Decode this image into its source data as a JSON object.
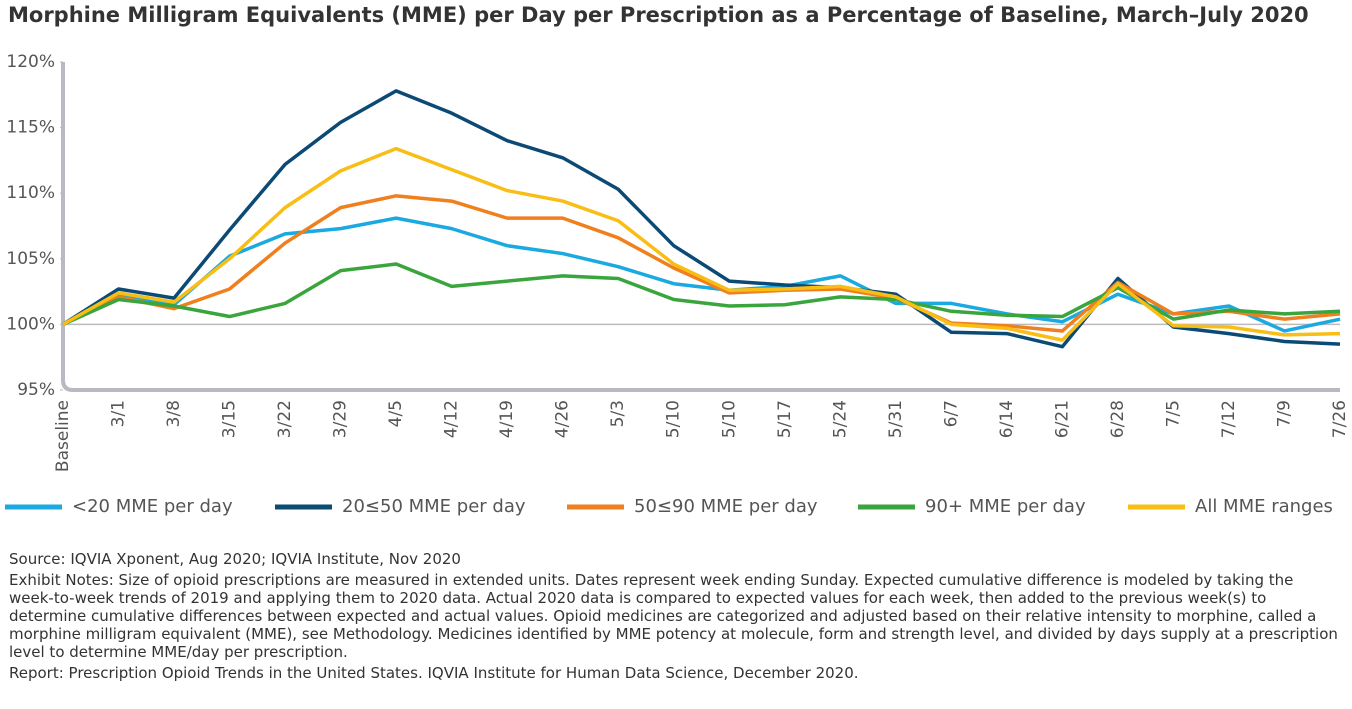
{
  "chart_data": {
    "type": "line",
    "title": "Morphine Milligram Equivalents (MME) per Day per Prescription as a Percentage of Baseline, March–July 2020",
    "categories": [
      "Baseline",
      "3/1",
      "3/8",
      "3/15",
      "3/22",
      "3/29",
      "4/5",
      "4/12",
      "4/19",
      "4/26",
      "5/3",
      "5/10",
      "5/10",
      "5/17",
      "5/24",
      "5/31",
      "6/7",
      "6/14",
      "6/21",
      "6/28",
      "7/5",
      "7/12",
      "7/9",
      "7/26"
    ],
    "series": [
      {
        "name": "<20 MME per day",
        "color": "#1ba9e1",
        "values": [
          100,
          102.2,
          101.5,
          105.2,
          106.9,
          107.3,
          108.1,
          107.3,
          106.0,
          105.4,
          104.4,
          103.1,
          102.6,
          102.9,
          103.7,
          101.6,
          101.6,
          100.8,
          100.2,
          102.3,
          100.8,
          101.4,
          99.5,
          100.4
        ]
      },
      {
        "name": "20≤50 MME per day",
        "color": "#0b4a75",
        "values": [
          100,
          102.7,
          102.0,
          107.2,
          112.2,
          115.4,
          117.8,
          116.1,
          114.0,
          112.7,
          110.3,
          106.0,
          103.3,
          103.0,
          102.8,
          102.3,
          99.4,
          99.3,
          98.3,
          103.5,
          99.8,
          99.3,
          98.7,
          98.5
        ]
      },
      {
        "name": "50≤90 MME per day",
        "color": "#f07f1e",
        "values": [
          100,
          102.1,
          101.2,
          102.7,
          106.2,
          108.9,
          109.8,
          109.4,
          108.1,
          108.1,
          106.6,
          104.3,
          102.4,
          102.6,
          102.7,
          102.0,
          100.1,
          99.9,
          99.5,
          103.2,
          100.8,
          101.0,
          100.4,
          100.8
        ]
      },
      {
        "name": "90+ MME per day",
        "color": "#3aa53d",
        "values": [
          100,
          101.9,
          101.4,
          100.6,
          101.6,
          104.1,
          104.6,
          102.9,
          103.3,
          103.7,
          103.5,
          101.9,
          101.4,
          101.5,
          102.1,
          101.9,
          101.0,
          100.7,
          100.6,
          102.8,
          100.4,
          101.1,
          100.8,
          101.0
        ]
      },
      {
        "name": "All MME ranges",
        "color": "#f8be15",
        "values": [
          100,
          102.4,
          101.7,
          105.0,
          108.9,
          111.7,
          113.4,
          111.8,
          110.2,
          109.4,
          107.9,
          104.6,
          102.6,
          102.7,
          102.9,
          102.1,
          100.0,
          99.7,
          98.8,
          103.1,
          99.9,
          99.8,
          99.2,
          99.3
        ]
      }
    ],
    "ylim": [
      95,
      120
    ],
    "yticks": [
      {
        "value": 95,
        "label": "95%"
      },
      {
        "value": 100,
        "label": "100%"
      },
      {
        "value": 105,
        "label": "105%"
      },
      {
        "value": 110,
        "label": "110%"
      },
      {
        "value": 115,
        "label": "115%"
      },
      {
        "value": 120,
        "label": "120%"
      }
    ],
    "baseline_line": 100,
    "legend": "bottom"
  },
  "notes": {
    "source": "Source: IQVIA Xponent, Aug 2020; IQVIA Institute, Nov 2020",
    "exhibit_notes": "Exhibit Notes: Size of opioid prescriptions are measured in extended units. Dates represent week ending Sunday. Expected cumulative difference is modeled by taking the week-to-week trends of 2019 and applying them to 2020 data. Actual 2020 data is compared to expected values for each week, then added to the previous week(s) to determine cumulative differences between expected and actual values. Opioid medicines are categorized and adjusted based on their relative intensity to morphine, called a morphine milligram equivalent (MME), see Methodology. Medicines identified by MME potency at molecule, form and strength level, and divided by days supply at a prescription level to determine MME/day per prescription.",
    "report": "Report: Prescription Opioid Trends in the United States. IQVIA Institute for Human Data Science, December 2020."
  }
}
